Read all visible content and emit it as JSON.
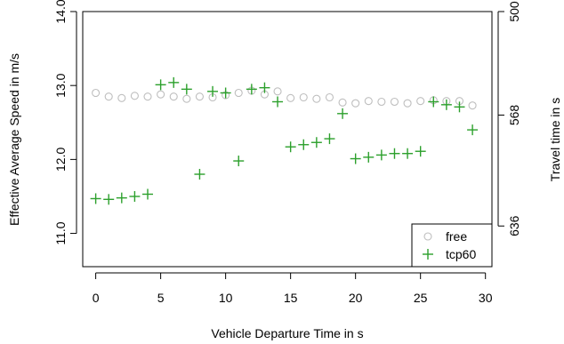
{
  "chart_data": {
    "type": "scatter",
    "title": "",
    "xlabel": "Vehicle Departure Time in s",
    "ylabel": "Effective Average Speed in m/s",
    "y2label": "Travel time in s",
    "xlim": [
      -1,
      30.5
    ],
    "ylim": [
      10.55,
      14.0
    ],
    "xticks": [
      0,
      5,
      10,
      15,
      20,
      25,
      30
    ],
    "yticks": [
      11.0,
      12.0,
      13.0,
      14.0
    ],
    "y2ticks": [
      {
        "label": "500",
        "at_speed": 14.0
      },
      {
        "label": "568",
        "at_speed": 12.6
      },
      {
        "label": "636",
        "at_speed": 11.1
      }
    ],
    "grid": false,
    "legend_position": "bottom-right",
    "series": [
      {
        "name": "free",
        "marker": "open-circle",
        "color": "#bebebe",
        "x": [
          0,
          1,
          2,
          3,
          4,
          5,
          6,
          7,
          8,
          9,
          10,
          11,
          12,
          13,
          14,
          15,
          16,
          17,
          18,
          19,
          20,
          21,
          22,
          23,
          24,
          25,
          26,
          27,
          28,
          29
        ],
        "y": [
          12.9,
          12.85,
          12.83,
          12.86,
          12.85,
          12.88,
          12.85,
          12.82,
          12.85,
          12.84,
          12.87,
          12.9,
          12.93,
          12.88,
          12.92,
          12.83,
          12.84,
          12.82,
          12.84,
          12.77,
          12.76,
          12.79,
          12.78,
          12.78,
          12.76,
          12.79,
          12.8,
          12.79,
          12.79,
          12.73
        ]
      },
      {
        "name": "tcp60",
        "marker": "plus",
        "color": "#2ca02c",
        "x": [
          0,
          1,
          2,
          3,
          4,
          5,
          6,
          7,
          8,
          9,
          10,
          11,
          12,
          13,
          14,
          15,
          16,
          17,
          18,
          19,
          20,
          21,
          22,
          23,
          24,
          25,
          26,
          27,
          28,
          29
        ],
        "y": [
          11.47,
          11.46,
          11.48,
          11.5,
          11.53,
          13.01,
          13.04,
          12.95,
          11.8,
          12.92,
          12.9,
          11.98,
          12.95,
          12.97,
          12.78,
          12.17,
          12.2,
          12.23,
          12.28,
          12.62,
          12.01,
          12.03,
          12.06,
          12.08,
          12.08,
          12.11,
          12.78,
          12.74,
          12.71,
          12.4
        ]
      }
    ]
  }
}
